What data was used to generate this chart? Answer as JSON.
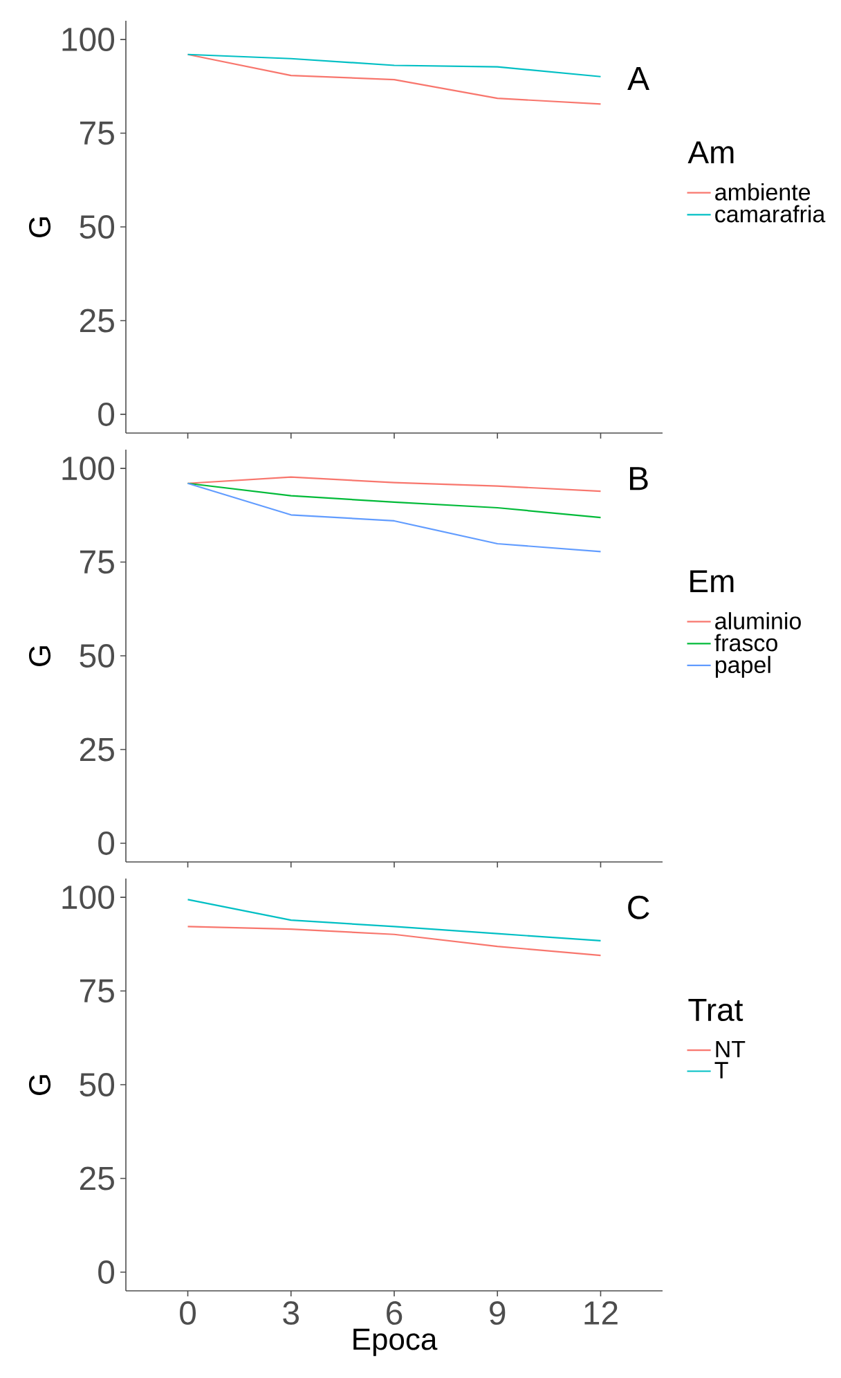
{
  "chart_data": [
    {
      "type": "line",
      "title": "A",
      "ylabel": "G",
      "legend_title": "Am",
      "legend": "right",
      "tick_labels": "y",
      "grid": false,
      "x": [
        0,
        3,
        6,
        9,
        12
      ],
      "xlim": [
        -1.8,
        13.8
      ],
      "xticks": [
        0,
        3,
        6,
        9,
        12
      ],
      "ylim": [
        -5,
        105
      ],
      "yticks": [
        0,
        25,
        50,
        75,
        100
      ],
      "series": [
        {
          "name": "ambiente",
          "color": "#f8766d",
          "values": [
            96,
            90.4,
            89.3,
            84.3,
            82.8
          ]
        },
        {
          "name": "camarafria",
          "color": "#00bfc4",
          "values": [
            96,
            94.9,
            93.1,
            92.7,
            90.1
          ]
        }
      ]
    },
    {
      "type": "line",
      "title": "B",
      "ylabel": "G",
      "legend_title": "Em",
      "legend": "right",
      "tick_labels": "y",
      "grid": false,
      "x": [
        0,
        3,
        6,
        9,
        12
      ],
      "xlim": [
        -1.8,
        13.8
      ],
      "xticks": [
        0,
        3,
        6,
        9,
        12
      ],
      "ylim": [
        -5,
        105
      ],
      "yticks": [
        0,
        25,
        50,
        75,
        100
      ],
      "series": [
        {
          "name": "aluminio",
          "color": "#f8766d",
          "values": [
            96,
            97.7,
            96.2,
            95.3,
            93.9
          ]
        },
        {
          "name": "frasco",
          "color": "#00ba38",
          "values": [
            96,
            92.7,
            91.0,
            89.5,
            86.9
          ]
        },
        {
          "name": "papel",
          "color": "#619cff",
          "values": [
            96,
            87.6,
            86.0,
            79.9,
            77.8
          ]
        }
      ]
    },
    {
      "type": "line",
      "title": "C",
      "xlabel": "Epoca",
      "ylabel": "G",
      "legend_title": "Trat",
      "legend": "right",
      "grid": false,
      "x": [
        0,
        3,
        6,
        9,
        12
      ],
      "xlim": [
        -1.8,
        13.8
      ],
      "xticks": [
        0,
        3,
        6,
        9,
        12
      ],
      "ylim": [
        -5,
        105
      ],
      "yticks": [
        0,
        25,
        50,
        75,
        100
      ],
      "series": [
        {
          "name": "NT",
          "color": "#f8766d",
          "values": [
            92.2,
            91.5,
            90.1,
            86.9,
            84.5
          ]
        },
        {
          "name": "T",
          "color": "#00bfc4",
          "values": [
            99.4,
            93.9,
            92.2,
            90.3,
            88.4
          ]
        }
      ]
    }
  ]
}
